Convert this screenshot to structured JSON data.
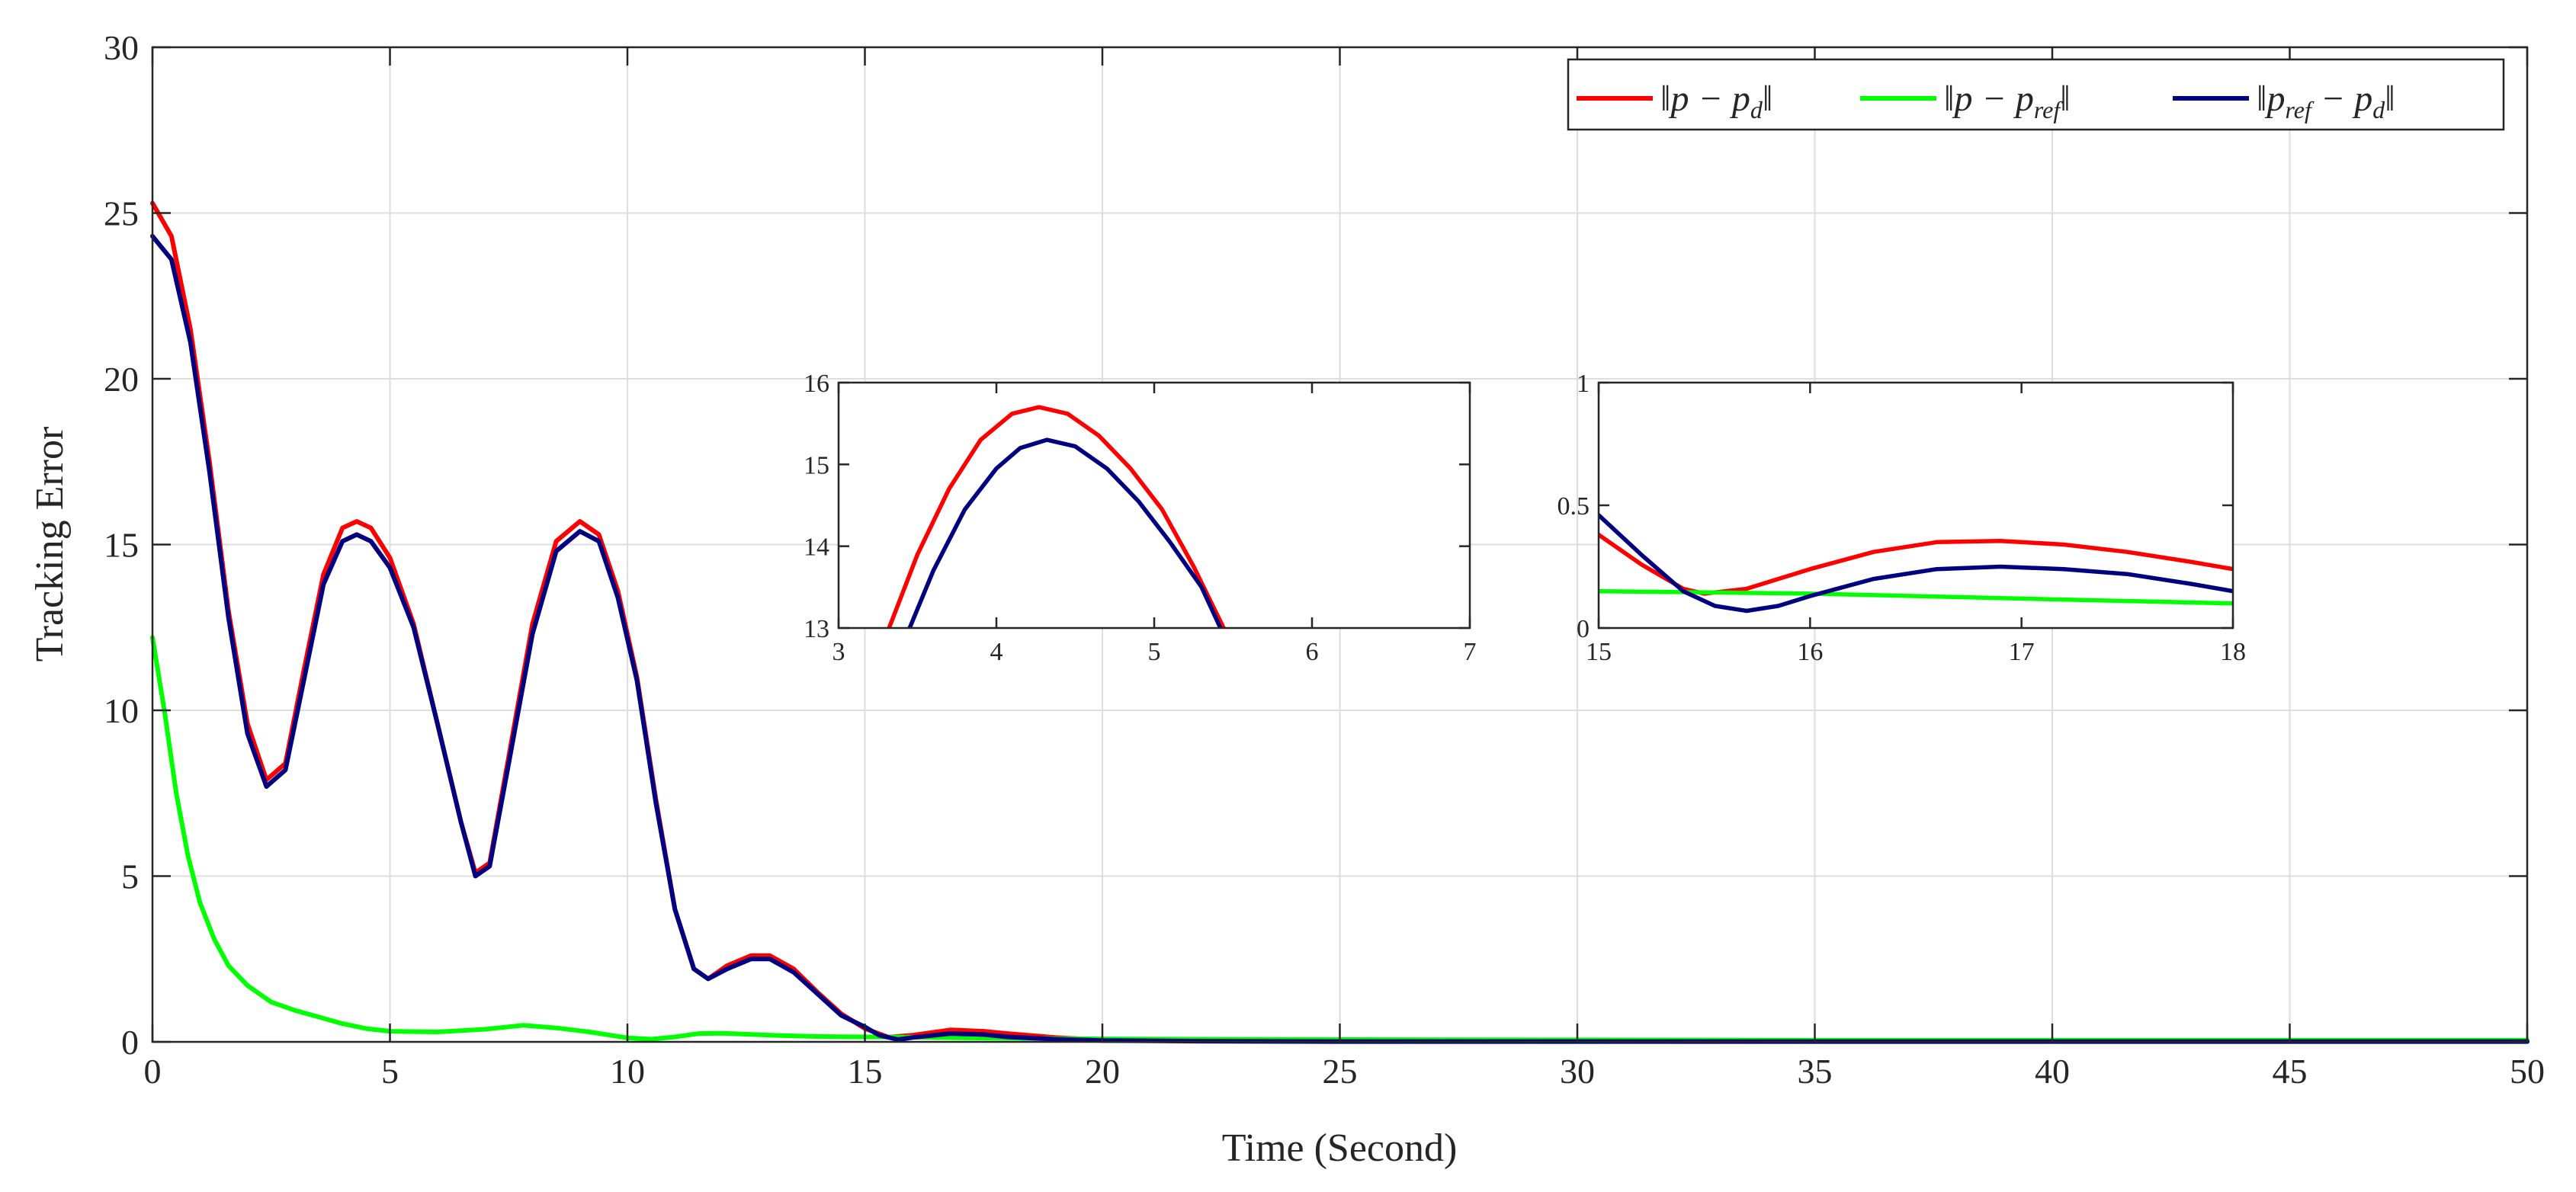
{
  "chart_data": {
    "type": "line",
    "xlabel": "Time (Second)",
    "ylabel": "Tracking Error",
    "xlim": [
      0,
      50
    ],
    "ylim": [
      0,
      30
    ],
    "xticks": [
      0,
      5,
      10,
      15,
      20,
      25,
      30,
      35,
      40,
      45,
      50
    ],
    "yticks": [
      0,
      5,
      10,
      15,
      20,
      25,
      30
    ],
    "grid": true,
    "legend_position": "top-right",
    "legend": [
      {
        "label": "‖p − p_d‖",
        "main": "‖p − p",
        "sub": "d",
        "tail": "‖",
        "color": "#ff0000"
      },
      {
        "label": "‖p − p_ref‖",
        "main": "‖p − p",
        "sub": "ref",
        "tail": "‖",
        "color": "#00ff00"
      },
      {
        "label": "‖p_ref − p_d‖",
        "main": "‖p",
        "sub": "ref",
        "mid": " − p",
        "sub2": "d",
        "tail": "‖",
        "color": "#000080"
      }
    ],
    "series": [
      {
        "name": "‖p − p_d‖",
        "color": "#ff0000",
        "points": [
          [
            0,
            25.3
          ],
          [
            0.4,
            24.3
          ],
          [
            0.8,
            21.5
          ],
          [
            1.2,
            17.5
          ],
          [
            1.6,
            13
          ],
          [
            2,
            9.6
          ],
          [
            2.4,
            7.9
          ],
          [
            2.8,
            8.4
          ],
          [
            3.2,
            11.3
          ],
          [
            3.6,
            14.1
          ],
          [
            4,
            15.5
          ],
          [
            4.3,
            15.7
          ],
          [
            4.6,
            15.5
          ],
          [
            5,
            14.6
          ],
          [
            5.5,
            12.6
          ],
          [
            6,
            9.6
          ],
          [
            6.5,
            6.6
          ],
          [
            6.8,
            5.1
          ],
          [
            7.1,
            5.4
          ],
          [
            7.5,
            8.6
          ],
          [
            8,
            12.6
          ],
          [
            8.5,
            15.1
          ],
          [
            9,
            15.7
          ],
          [
            9.4,
            15.3
          ],
          [
            9.8,
            13.6
          ],
          [
            10.2,
            11
          ],
          [
            10.6,
            7.3
          ],
          [
            11,
            4
          ],
          [
            11.4,
            2.2
          ],
          [
            11.7,
            1.9
          ],
          [
            12.1,
            2.3
          ],
          [
            12.6,
            2.6
          ],
          [
            13,
            2.6
          ],
          [
            13.5,
            2.2
          ],
          [
            14,
            1.5
          ],
          [
            14.5,
            0.85
          ],
          [
            15,
            0.4
          ],
          [
            15.5,
            0.14
          ],
          [
            16,
            0.2
          ],
          [
            16.8,
            0.36
          ],
          [
            17.5,
            0.32
          ],
          [
            18,
            0.25
          ],
          [
            19,
            0.13
          ],
          [
            20,
            0.06
          ],
          [
            22,
            0.03
          ],
          [
            25,
            0.02
          ],
          [
            30,
            0.02
          ],
          [
            35,
            0.02
          ],
          [
            40,
            0.02
          ],
          [
            45,
            0.02
          ],
          [
            50,
            0.02
          ]
        ]
      },
      {
        "name": "‖p − p_ref‖",
        "color": "#00ff00",
        "points": [
          [
            0,
            12.2
          ],
          [
            0.25,
            10
          ],
          [
            0.5,
            7.5
          ],
          [
            0.75,
            5.6
          ],
          [
            1,
            4.2
          ],
          [
            1.3,
            3.1
          ],
          [
            1.6,
            2.3
          ],
          [
            2,
            1.7
          ],
          [
            2.5,
            1.2
          ],
          [
            3,
            0.95
          ],
          [
            3.5,
            0.75
          ],
          [
            4,
            0.55
          ],
          [
            4.5,
            0.4
          ],
          [
            5,
            0.32
          ],
          [
            6,
            0.3
          ],
          [
            7,
            0.38
          ],
          [
            7.8,
            0.5
          ],
          [
            8.5,
            0.42
          ],
          [
            9.2,
            0.3
          ],
          [
            10,
            0.12
          ],
          [
            10.5,
            0.08
          ],
          [
            11,
            0.15
          ],
          [
            11.5,
            0.25
          ],
          [
            12,
            0.26
          ],
          [
            13,
            0.2
          ],
          [
            14,
            0.16
          ],
          [
            15,
            0.15
          ],
          [
            16,
            0.14
          ],
          [
            17,
            0.12
          ],
          [
            18,
            0.11
          ],
          [
            20,
            0.09
          ],
          [
            25,
            0.07
          ],
          [
            30,
            0.06
          ],
          [
            35,
            0.05
          ],
          [
            40,
            0.05
          ],
          [
            45,
            0.05
          ],
          [
            50,
            0.05
          ]
        ]
      },
      {
        "name": "‖p_ref − p_d‖",
        "color": "#000080",
        "points": [
          [
            0,
            24.3
          ],
          [
            0.4,
            23.6
          ],
          [
            0.8,
            21.1
          ],
          [
            1.2,
            17.2
          ],
          [
            1.6,
            12.8
          ],
          [
            2,
            9.3
          ],
          [
            2.4,
            7.7
          ],
          [
            2.8,
            8.2
          ],
          [
            3.2,
            11
          ],
          [
            3.6,
            13.8
          ],
          [
            4,
            15.1
          ],
          [
            4.3,
            15.3
          ],
          [
            4.6,
            15.1
          ],
          [
            5,
            14.3
          ],
          [
            5.5,
            12.5
          ],
          [
            6,
            9.6
          ],
          [
            6.5,
            6.6
          ],
          [
            6.8,
            5.0
          ],
          [
            7.1,
            5.3
          ],
          [
            7.5,
            8.4
          ],
          [
            8,
            12.3
          ],
          [
            8.5,
            14.8
          ],
          [
            9,
            15.4
          ],
          [
            9.4,
            15.1
          ],
          [
            9.8,
            13.4
          ],
          [
            10.2,
            10.9
          ],
          [
            10.6,
            7.2
          ],
          [
            11,
            4
          ],
          [
            11.4,
            2.2
          ],
          [
            11.7,
            1.9
          ],
          [
            12.1,
            2.2
          ],
          [
            12.6,
            2.5
          ],
          [
            13,
            2.5
          ],
          [
            13.5,
            2.1
          ],
          [
            14,
            1.45
          ],
          [
            14.5,
            0.8
          ],
          [
            15,
            0.45
          ],
          [
            15.3,
            0.2
          ],
          [
            15.7,
            0.07
          ],
          [
            16,
            0.13
          ],
          [
            16.8,
            0.25
          ],
          [
            17.5,
            0.22
          ],
          [
            18,
            0.15
          ],
          [
            19,
            0.08
          ],
          [
            20,
            0.04
          ],
          [
            22,
            0.02
          ],
          [
            25,
            0.01
          ],
          [
            30,
            0.01
          ],
          [
            35,
            0.01
          ],
          [
            40,
            0.01
          ],
          [
            45,
            0.01
          ],
          [
            50,
            0.01
          ]
        ]
      }
    ],
    "insets": [
      {
        "xlim": [
          3,
          7
        ],
        "ylim": [
          13,
          16
        ],
        "xticks": [
          3,
          4,
          5,
          6,
          7
        ],
        "yticks": [
          13,
          14,
          15,
          16
        ],
        "series": [
          {
            "color": "#ff0000",
            "points": [
              [
                3.32,
                13
              ],
              [
                3.5,
                13.9
              ],
              [
                3.7,
                14.7
              ],
              [
                3.9,
                15.3
              ],
              [
                4.1,
                15.62
              ],
              [
                4.27,
                15.7
              ],
              [
                4.45,
                15.62
              ],
              [
                4.65,
                15.35
              ],
              [
                4.85,
                14.95
              ],
              [
                5.05,
                14.45
              ],
              [
                5.25,
                13.75
              ],
              [
                5.44,
                13
              ]
            ]
          },
          {
            "color": "#000080",
            "points": [
              [
                3.45,
                13
              ],
              [
                3.6,
                13.7
              ],
              [
                3.8,
                14.45
              ],
              [
                4,
                14.95
              ],
              [
                4.15,
                15.2
              ],
              [
                4.32,
                15.3
              ],
              [
                4.5,
                15.22
              ],
              [
                4.7,
                14.95
              ],
              [
                4.9,
                14.55
              ],
              [
                5.1,
                14.05
              ],
              [
                5.3,
                13.5
              ],
              [
                5.42,
                13
              ]
            ]
          }
        ]
      },
      {
        "xlim": [
          15,
          18
        ],
        "ylim": [
          0,
          1
        ],
        "xticks": [
          15,
          16,
          17,
          18
        ],
        "yticks": [
          0,
          0.5,
          1
        ],
        "ytick_labels": [
          "0",
          "0.5",
          "1"
        ],
        "series": [
          {
            "color": "#ff0000",
            "points": [
              [
                15,
                0.38
              ],
              [
                15.2,
                0.26
              ],
              [
                15.4,
                0.16
              ],
              [
                15.5,
                0.14
              ],
              [
                15.7,
                0.16
              ],
              [
                16,
                0.24
              ],
              [
                16.3,
                0.31
              ],
              [
                16.6,
                0.35
              ],
              [
                16.9,
                0.355
              ],
              [
                17.2,
                0.34
              ],
              [
                17.5,
                0.31
              ],
              [
                17.8,
                0.27
              ],
              [
                18,
                0.24
              ]
            ]
          },
          {
            "color": "#00ff00",
            "points": [
              [
                15,
                0.15
              ],
              [
                15.5,
                0.145
              ],
              [
                16,
                0.14
              ],
              [
                16.5,
                0.13
              ],
              [
                17,
                0.12
              ],
              [
                17.5,
                0.11
              ],
              [
                18,
                0.1
              ]
            ]
          },
          {
            "color": "#000080",
            "points": [
              [
                15,
                0.46
              ],
              [
                15.2,
                0.3
              ],
              [
                15.4,
                0.15
              ],
              [
                15.55,
                0.09
              ],
              [
                15.7,
                0.07
              ],
              [
                15.85,
                0.09
              ],
              [
                16,
                0.13
              ],
              [
                16.3,
                0.2
              ],
              [
                16.6,
                0.24
              ],
              [
                16.9,
                0.25
              ],
              [
                17.2,
                0.24
              ],
              [
                17.5,
                0.22
              ],
              [
                17.8,
                0.18
              ],
              [
                18,
                0.15
              ]
            ]
          }
        ]
      }
    ]
  }
}
